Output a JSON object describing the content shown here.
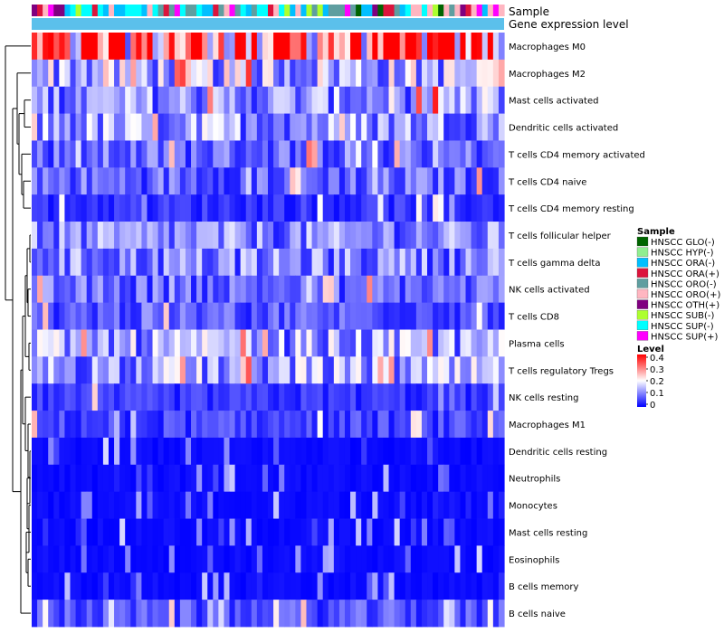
{
  "chart_data": {
    "type": "heatmap",
    "annotation_tracks": [
      "Sample",
      "Gene expression level"
    ],
    "rows": [
      "Macrophages M0",
      "Macrophages M2",
      "Mast cells activated",
      "Dendritic cells activated",
      "T cells CD4 memory activated",
      "T cells CD4 naive",
      "T cells CD4 memory resting",
      "T cells follicular helper",
      "T cells gamma delta",
      "NK cells activated",
      "T cells CD8",
      "Plasma cells",
      "T cells regulatory  Tregs",
      "NK cells resting",
      "Macrophages M1",
      "Dendritic cells resting",
      "Neutrophils",
      "Monocytes",
      "Mast cells resting",
      "Eosinophils",
      "B cells memory",
      "B cells naive"
    ],
    "row_mean_levels": [
      0.3,
      0.14,
      0.11,
      0.12,
      0.08,
      0.08,
      0.04,
      0.1,
      0.1,
      0.08,
      0.07,
      0.12,
      0.12,
      0.04,
      0.05,
      0.02,
      0.03,
      0.03,
      0.02,
      0.01,
      0.01,
      0.06
    ],
    "n_samples": 86,
    "sample_legend": {
      "title": "Sample",
      "entries": [
        {
          "label": "HNSCC GLO(-)",
          "color": "#006400"
        },
        {
          "label": "HNSCC HYP(-)",
          "color": "#90ee90"
        },
        {
          "label": "HNSCC ORA(-)",
          "color": "#00bfff"
        },
        {
          "label": "HNSCC ORA(+)",
          "color": "#dc143c"
        },
        {
          "label": "HNSCC ORO(-)",
          "color": "#5f9ea0"
        },
        {
          "label": "HNSCC ORO(+)",
          "color": "#ffb6c1"
        },
        {
          "label": "HNSCC OTH(+)",
          "color": "#800080"
        },
        {
          "label": "HNSCC SUB(-)",
          "color": "#adff2f"
        },
        {
          "label": "HNSCC SUP(-)",
          "color": "#00ffff"
        },
        {
          "label": "HNSCC SUP(+)",
          "color": "#ff00ff"
        }
      ]
    },
    "level_legend": {
      "title": "Level",
      "ticks": [
        "0.4",
        "0.3",
        "0.2",
        "0.1",
        "0"
      ],
      "range": [
        0,
        0.4
      ],
      "colors": {
        "low": "#0000ff",
        "mid": "#ffffff",
        "high": "#ff0000"
      }
    },
    "gene_expression_track_color": "#5bc0eb"
  }
}
